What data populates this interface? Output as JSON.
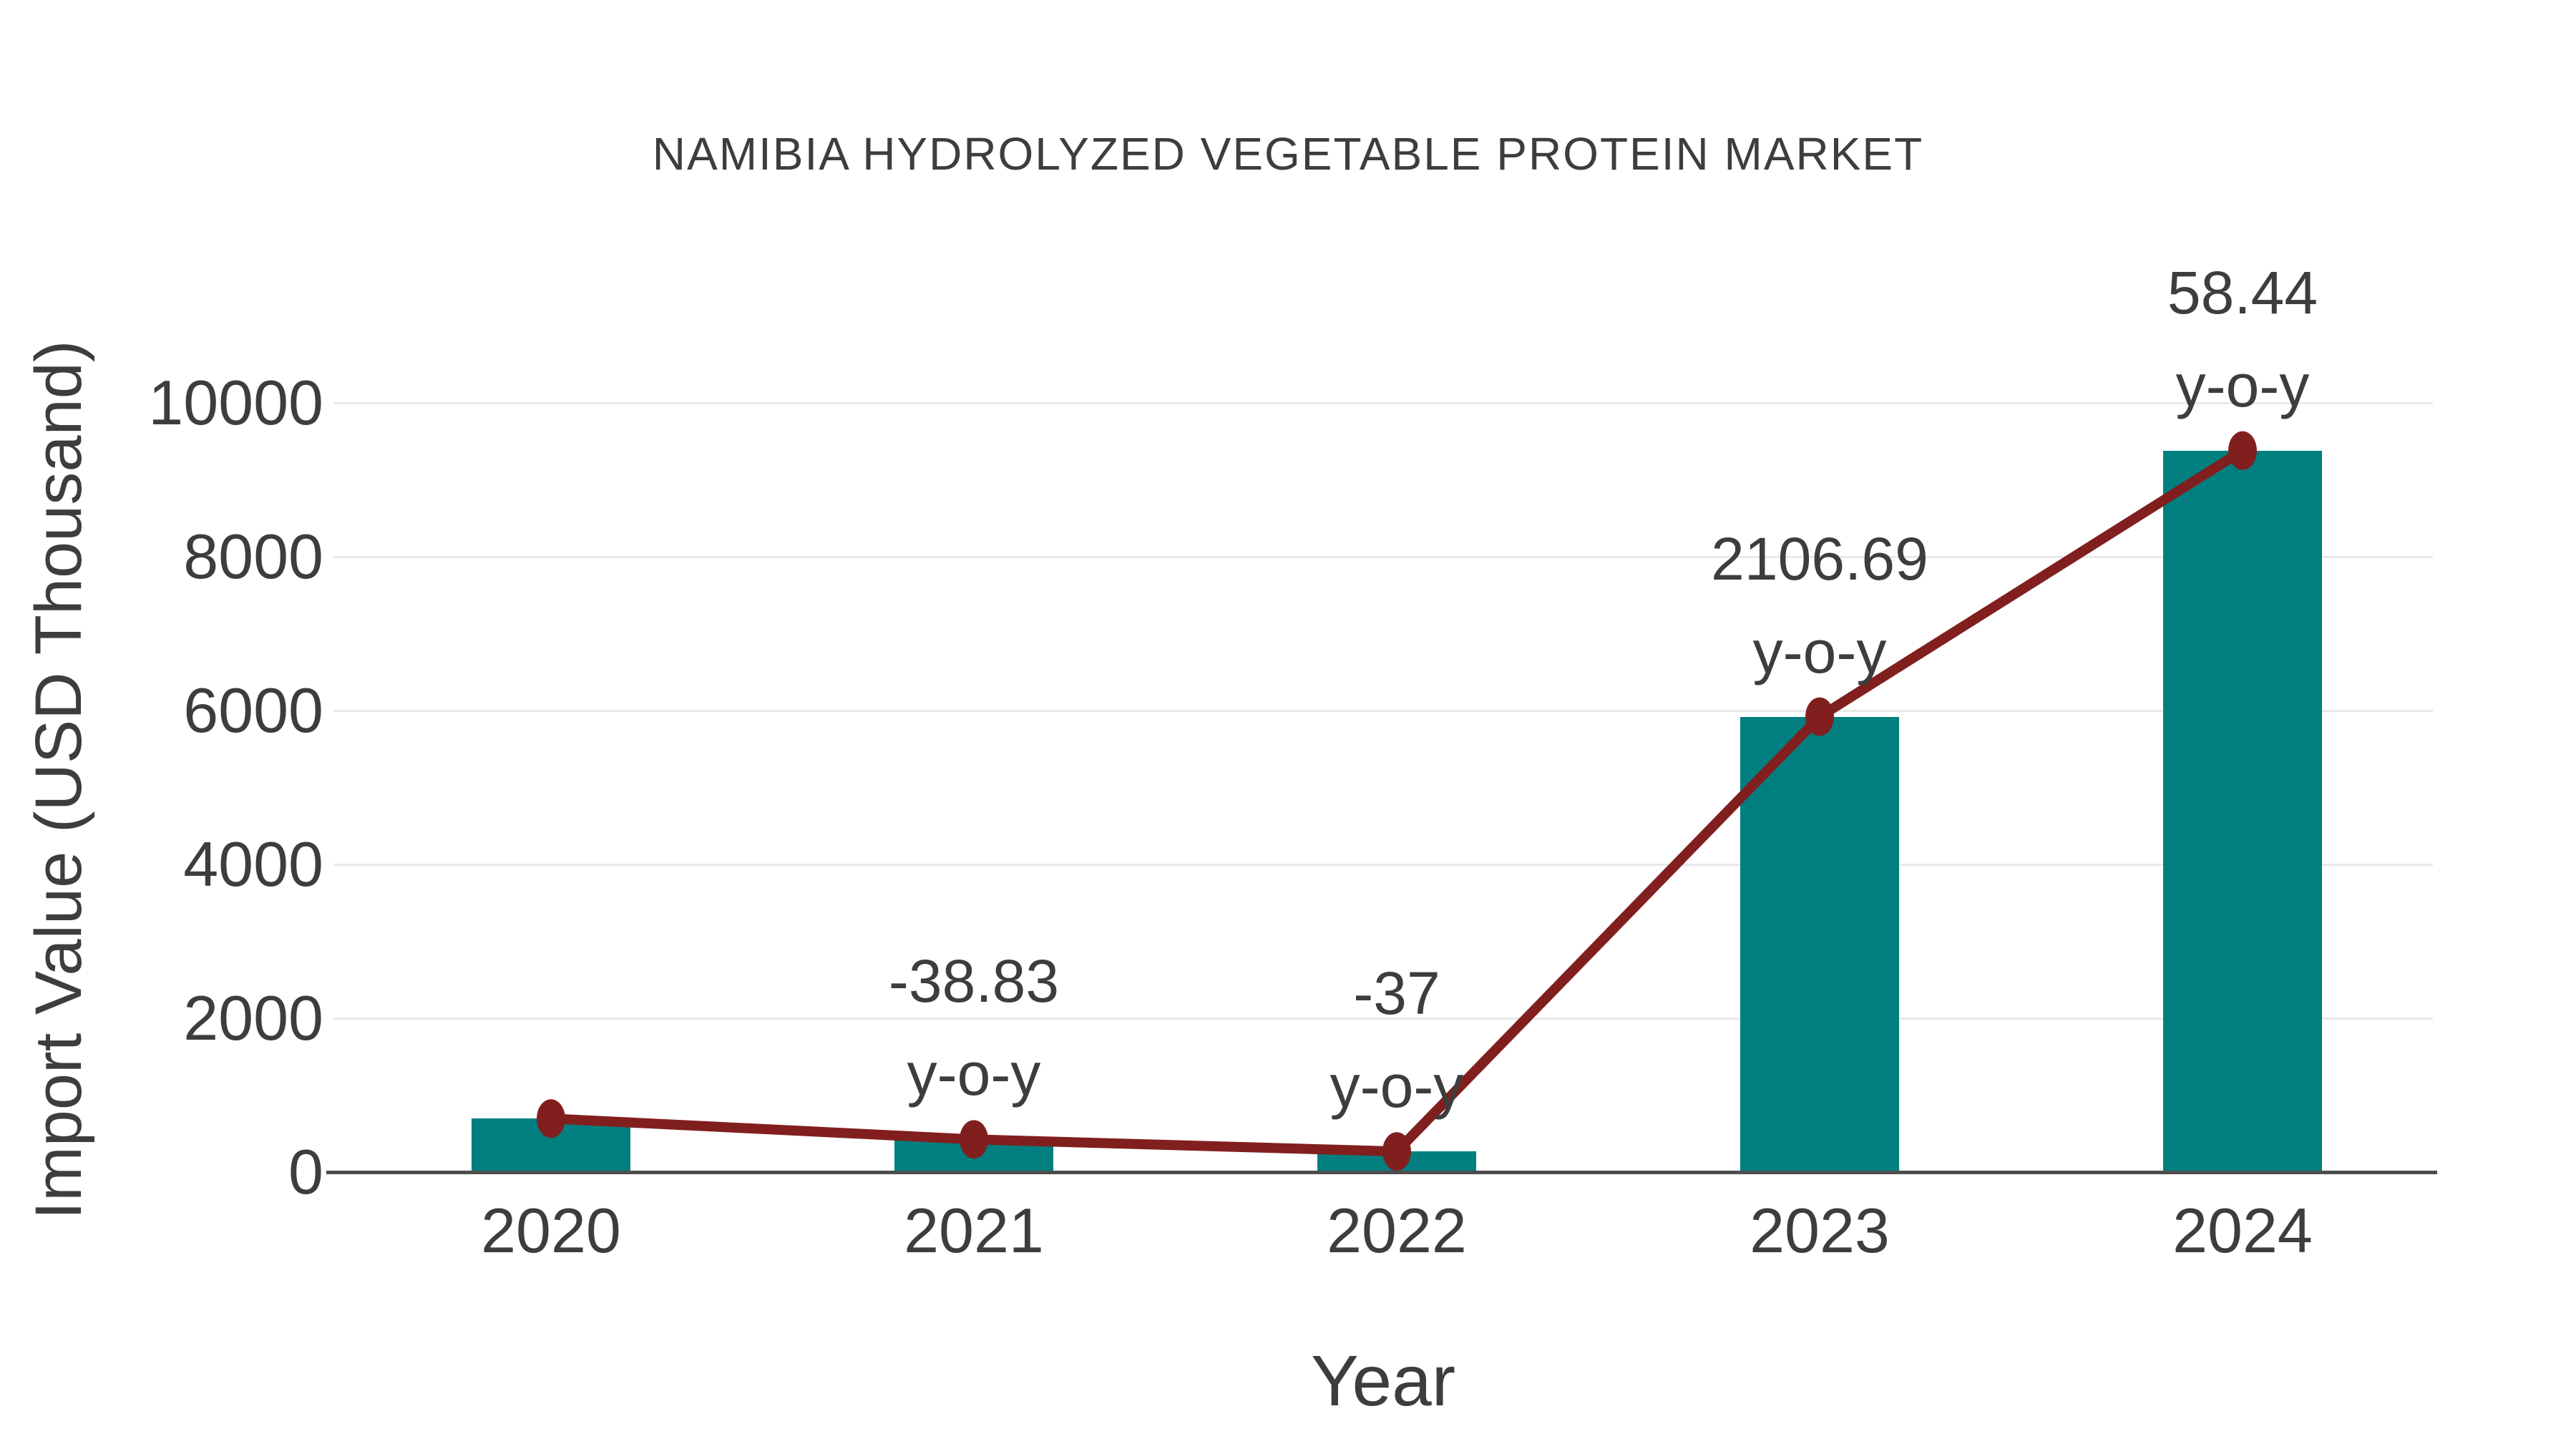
{
  "page": {
    "background": "#ffffff"
  },
  "chart_data": {
    "type": "bar+line",
    "title": "NAMIBIA HYDROLYZED VEGETABLE PROTEIN MARKET",
    "xlabel": "Year",
    "ylabel": "Import Value (USD Thousand)",
    "categories": [
      "2020",
      "2021",
      "2022",
      "2023",
      "2024"
    ],
    "ylim": [
      0,
      10000
    ],
    "yticks": [
      0,
      2000,
      4000,
      6000,
      8000,
      10000
    ],
    "grid": "horizontal",
    "legend_position": "none",
    "series": [
      {
        "name": "import-value-bars",
        "type": "bar",
        "color": "#017f80",
        "values": [
          695,
          425,
          268,
          5920,
          9380
        ]
      },
      {
        "name": "import-value-trend",
        "type": "line",
        "color": "#811f1f",
        "values": [
          695,
          425,
          268,
          5920,
          9380
        ],
        "annotations": [
          {
            "category": "2021",
            "value_label": "-38.83",
            "suffix": "y-o-y"
          },
          {
            "category": "2022",
            "value_label": "-37",
            "suffix": "y-o-y"
          },
          {
            "category": "2023",
            "value_label": "2106.69",
            "suffix": "y-o-y"
          },
          {
            "category": "2024",
            "value_label": "58.44",
            "suffix": "y-o-y"
          }
        ]
      }
    ],
    "colors": {
      "text": "#3d3d3d",
      "grid": "#e9e9e9",
      "axis": "#4d4d4d",
      "bar": "#017f80",
      "line": "#811f1f",
      "background": "#ffffff"
    }
  }
}
